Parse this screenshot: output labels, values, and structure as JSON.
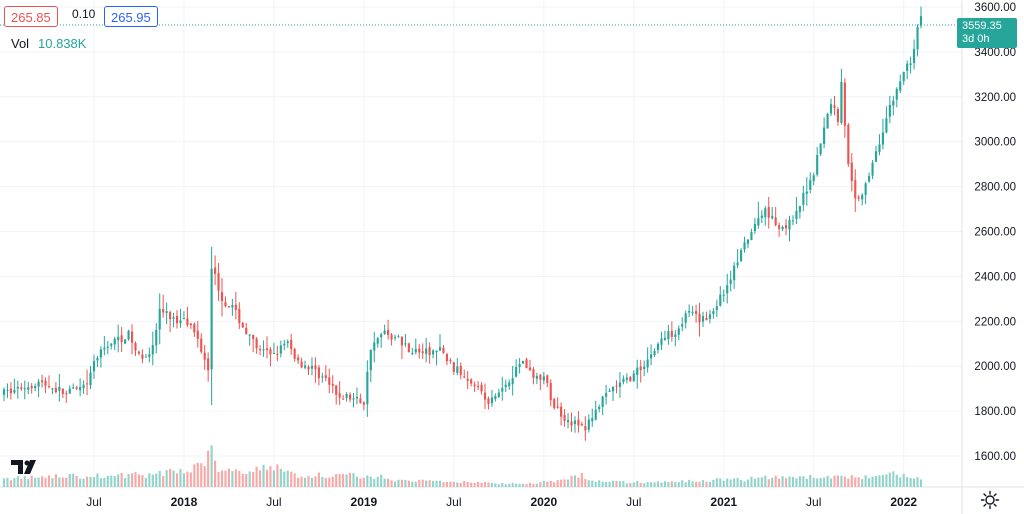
{
  "header": {
    "bid": "265.85",
    "spread": "0.10",
    "ask": "265.95",
    "vol_label": "Vol",
    "vol_value": "10.838K"
  },
  "last_price": {
    "value": "3559.35",
    "countdown": "3d 0h",
    "price": 3559.35
  },
  "colors": {
    "up": "#26a69a",
    "down": "#ef5350",
    "grid": "#f0f3fa",
    "text": "#131722",
    "vol_up": "#93d3cc",
    "vol_down": "#f7a9a7"
  },
  "icons": [
    "tradingview-logo-icon",
    "gear-icon"
  ],
  "chart_data": {
    "type": "candlestick",
    "y_ticks": [
      1600,
      1800,
      2000,
      2200,
      2400,
      2600,
      2800,
      3000,
      3200,
      3400,
      3600
    ],
    "y_tick_labels": [
      "1600.00",
      "1800.00",
      "2000.00",
      "2200.00",
      "2400.00",
      "2600.00",
      "2800.00",
      "3000.00",
      "3200.00",
      "3400.00",
      "3600.00"
    ],
    "ylim": [
      1470,
      3690
    ],
    "x_tick_labels": [
      "Jul",
      "2018",
      "Jul",
      "2019",
      "Jul",
      "2020",
      "Jul",
      "2021",
      "Jul",
      "2022"
    ],
    "x_tick_weeks": [
      26,
      52,
      78,
      104,
      130,
      156,
      182,
      208,
      234,
      260
    ],
    "grid": true,
    "weeks_total": 265,
    "price_path": [
      [
        0,
        1880
      ],
      [
        10,
        1930
      ],
      [
        18,
        1880
      ],
      [
        24,
        1905
      ],
      [
        26,
        2020
      ],
      [
        30,
        2100
      ],
      [
        36,
        2140
      ],
      [
        39,
        2040
      ],
      [
        43,
        2080
      ],
      [
        45,
        2250
      ],
      [
        50,
        2200
      ],
      [
        52,
        2230
      ],
      [
        56,
        2120
      ],
      [
        59,
        2000
      ],
      [
        60,
        2450
      ],
      [
        63,
        2300
      ],
      [
        66,
        2260
      ],
      [
        70,
        2150
      ],
      [
        74,
        2060
      ],
      [
        78,
        2060
      ],
      [
        82,
        2100
      ],
      [
        85,
        2020
      ],
      [
        89,
        1990
      ],
      [
        93,
        1940
      ],
      [
        96,
        1870
      ],
      [
        100,
        1860
      ],
      [
        104,
        1840
      ],
      [
        106,
        2090
      ],
      [
        110,
        2150
      ],
      [
        114,
        2120
      ],
      [
        118,
        2070
      ],
      [
        122,
        2060
      ],
      [
        126,
        2070
      ],
      [
        130,
        1990
      ],
      [
        136,
        1930
      ],
      [
        140,
        1830
      ],
      [
        144,
        1900
      ],
      [
        150,
        2030
      ],
      [
        153,
        1950
      ],
      [
        156,
        1950
      ],
      [
        159,
        1820
      ],
      [
        163,
        1760
      ],
      [
        168,
        1720
      ],
      [
        171,
        1810
      ],
      [
        176,
        1900
      ],
      [
        182,
        1960
      ],
      [
        186,
        2030
      ],
      [
        190,
        2120
      ],
      [
        194,
        2160
      ],
      [
        198,
        2240
      ],
      [
        201,
        2200
      ],
      [
        204,
        2230
      ],
      [
        208,
        2330
      ],
      [
        212,
        2470
      ],
      [
        216,
        2600
      ],
      [
        220,
        2700
      ],
      [
        224,
        2620
      ],
      [
        228,
        2640
      ],
      [
        234,
        2870
      ],
      [
        239,
        3180
      ],
      [
        241,
        3100
      ],
      [
        242,
        3270
      ],
      [
        244,
        2890
      ],
      [
        246,
        2740
      ],
      [
        249,
        2800
      ],
      [
        252,
        2960
      ],
      [
        256,
        3150
      ],
      [
        260,
        3310
      ],
      [
        262,
        3360
      ],
      [
        265,
        3559
      ]
    ],
    "volume_peaks": [
      [
        0,
        0.35
      ],
      [
        10,
        0.4
      ],
      [
        17,
        0.45
      ],
      [
        24,
        0.45
      ],
      [
        28,
        0.45
      ],
      [
        36,
        0.5
      ],
      [
        44,
        0.5
      ],
      [
        48,
        0.65
      ],
      [
        52,
        0.7
      ],
      [
        56,
        0.9
      ],
      [
        58,
        1.0
      ],
      [
        60,
        1.8
      ],
      [
        62,
        0.8
      ],
      [
        66,
        0.7
      ],
      [
        70,
        0.7
      ],
      [
        76,
        0.8
      ],
      [
        80,
        0.8
      ],
      [
        86,
        0.4
      ],
      [
        90,
        0.5
      ],
      [
        96,
        0.5
      ],
      [
        100,
        0.55
      ],
      [
        102,
        0.4
      ],
      [
        108,
        0.45
      ],
      [
        112,
        0.3
      ],
      [
        118,
        0.25
      ],
      [
        124,
        0.25
      ],
      [
        130,
        0.2
      ],
      [
        136,
        0.2
      ],
      [
        144,
        0.15
      ],
      [
        148,
        0.15
      ],
      [
        150,
        0.12
      ],
      [
        162,
        0.3
      ],
      [
        164,
        0.4
      ],
      [
        167,
        0.5
      ],
      [
        170,
        0.25
      ],
      [
        180,
        0.2
      ],
      [
        190,
        0.2
      ],
      [
        200,
        0.25
      ],
      [
        206,
        0.3
      ],
      [
        210,
        0.35
      ],
      [
        214,
        0.3
      ],
      [
        220,
        0.45
      ],
      [
        226,
        0.35
      ],
      [
        232,
        0.4
      ],
      [
        238,
        0.45
      ],
      [
        242,
        0.4
      ],
      [
        248,
        0.4
      ],
      [
        254,
        0.45
      ],
      [
        258,
        0.55
      ],
      [
        262,
        0.4
      ],
      [
        265,
        0.3
      ]
    ]
  }
}
